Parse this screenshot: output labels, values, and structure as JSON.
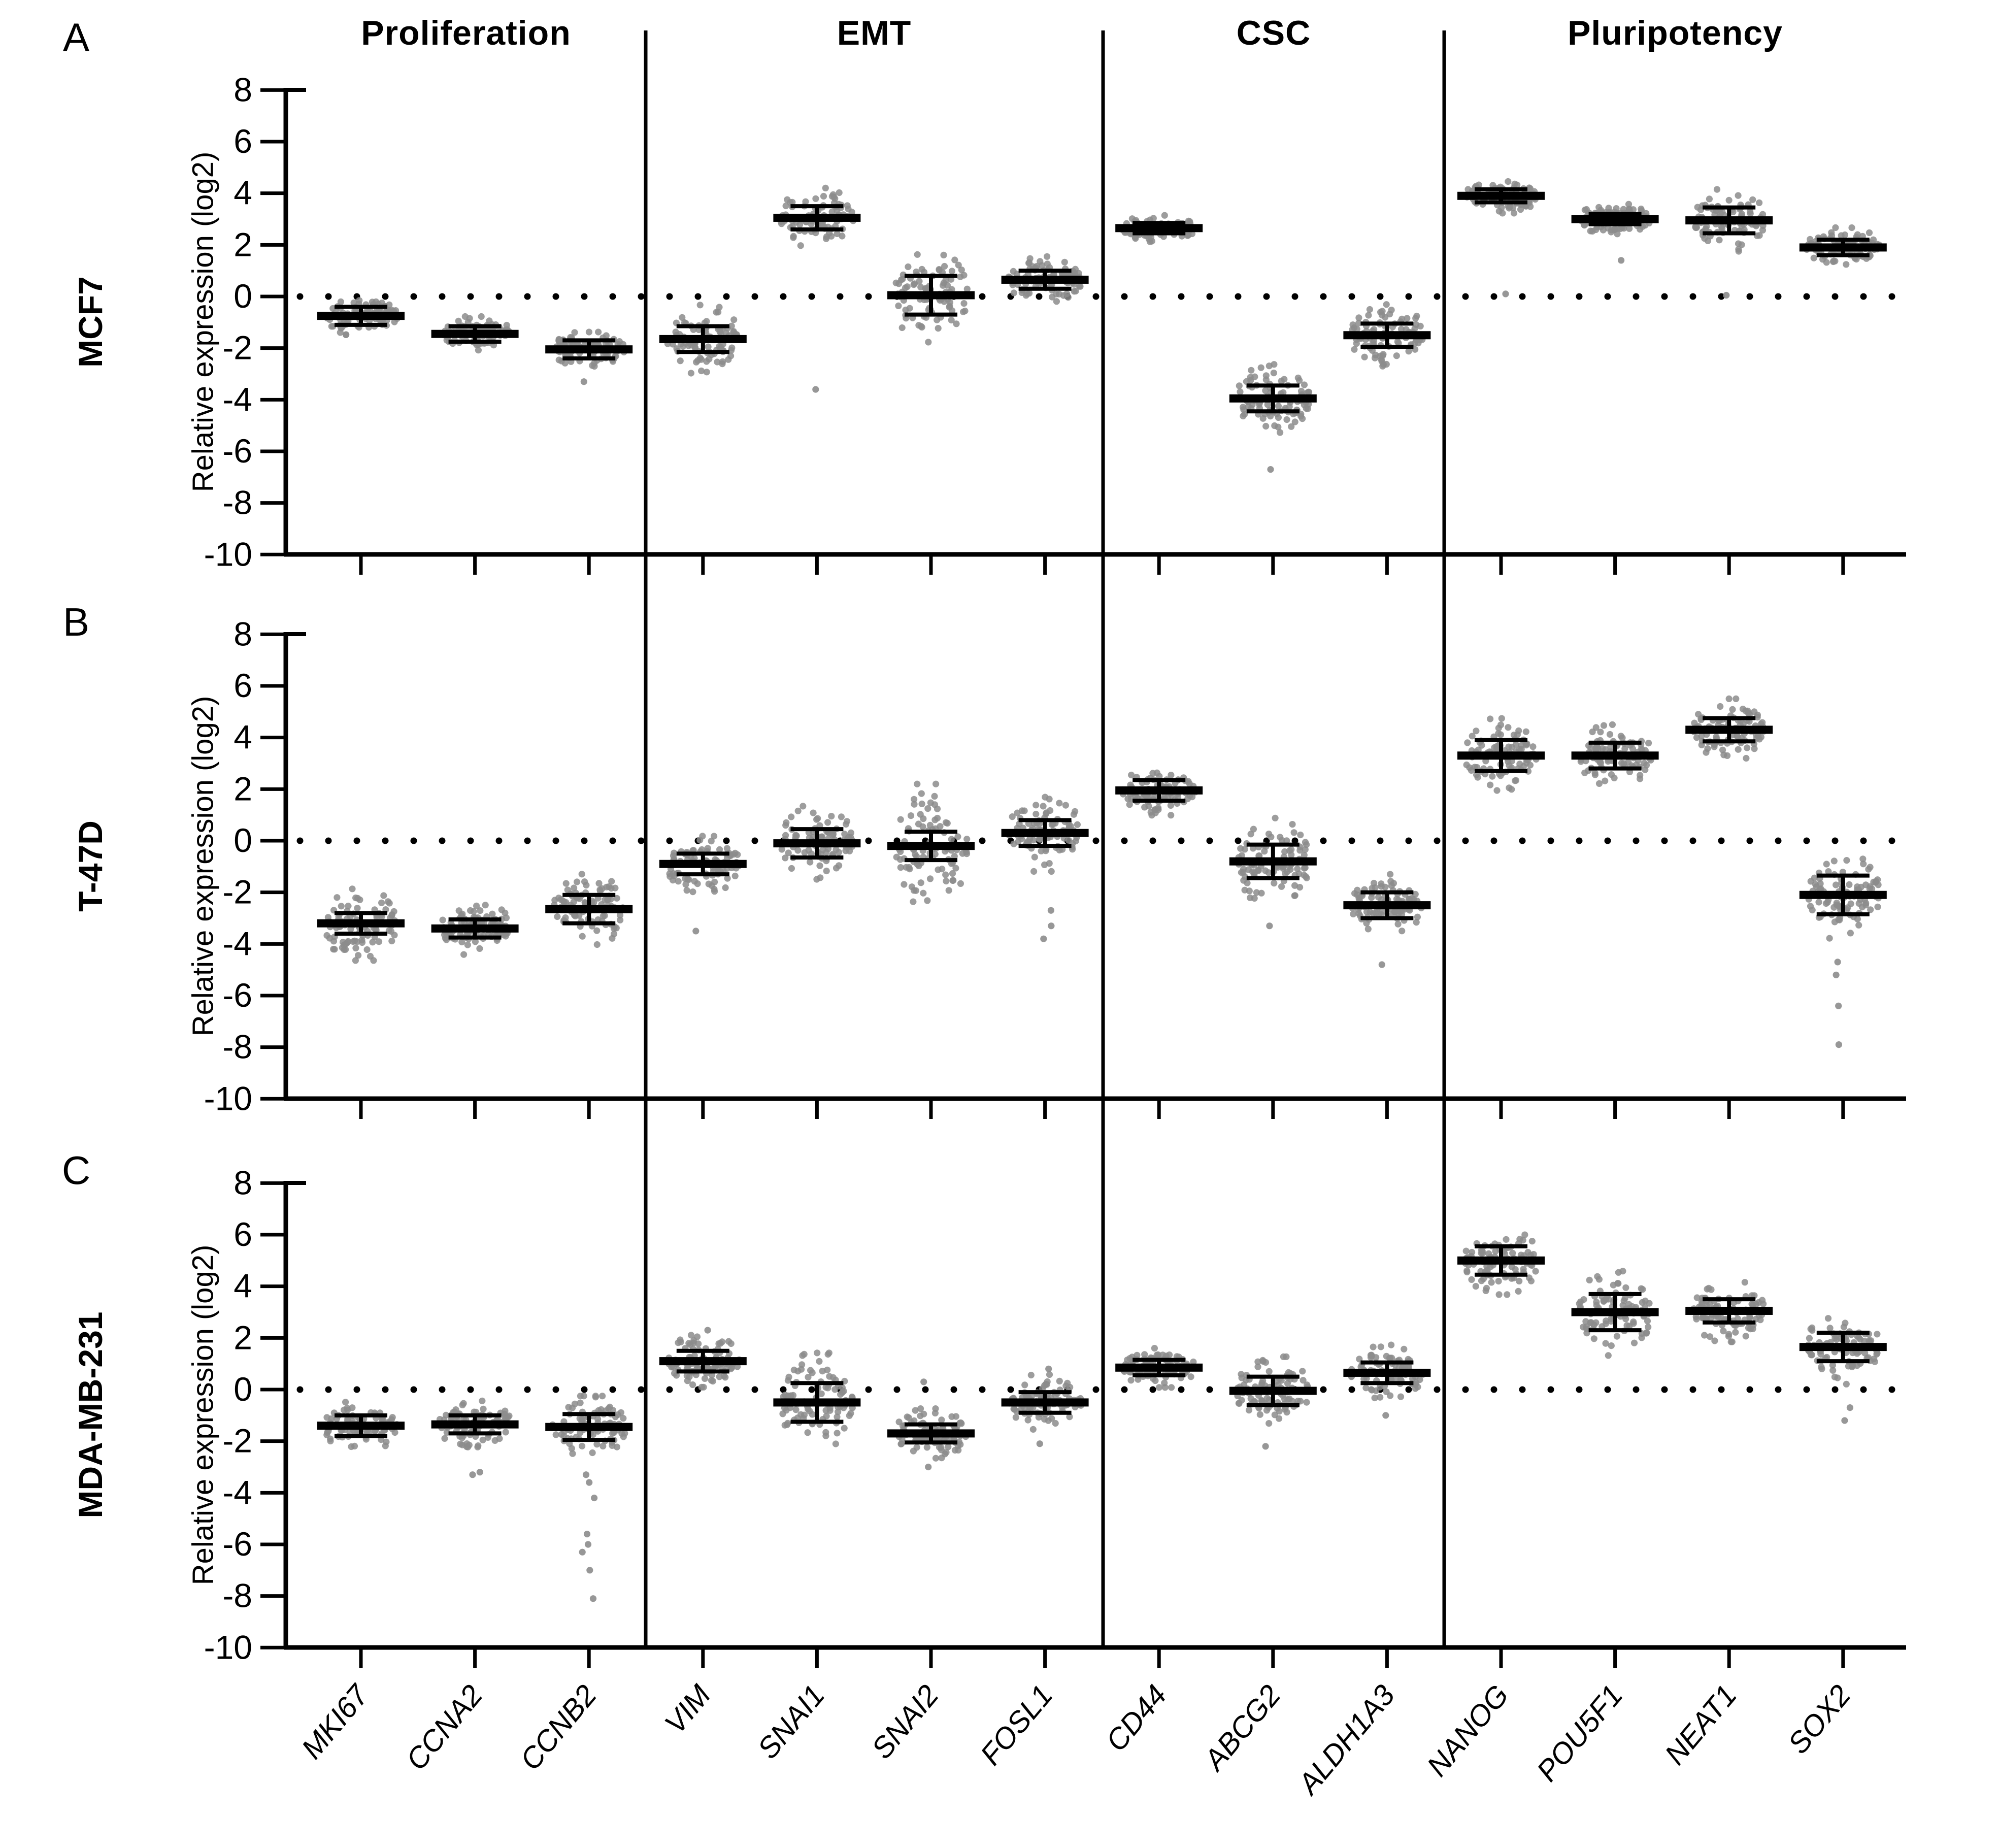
{
  "figure_title": "",
  "chart_data": {
    "type": "scatter",
    "subtype": "beeswarm-dot-plot",
    "ylabel": "Relative expression (log2)",
    "ylim": [
      -10,
      8
    ],
    "yticks": [
      8,
      6,
      4,
      2,
      0,
      -2,
      -4,
      -6,
      -8,
      -10
    ],
    "zero_reference_line": "dotted",
    "legend_position": "none",
    "grid": false,
    "groups": [
      {
        "label": "Proliferation",
        "genes": [
          "MKI67",
          "CCNA2",
          "CCNB2"
        ]
      },
      {
        "label": "EMT",
        "genes": [
          "VIM",
          "SNAI1",
          "SNAI2",
          "FOSL1"
        ]
      },
      {
        "label": "CSC",
        "genes": [
          "CD44",
          "ABCG2",
          "ALDH1A3"
        ]
      },
      {
        "label": "Pluripotency",
        "genes": [
          "NANOG",
          "POU5F1",
          "NEAT1",
          "SOX2"
        ]
      }
    ],
    "genes": [
      "MKI67",
      "CCNA2",
      "CCNB2",
      "VIM",
      "SNAI1",
      "SNAI2",
      "FOSL1",
      "CD44",
      "ABCG2",
      "ALDH1A3",
      "NANOG",
      "POU5F1",
      "NEAT1",
      "SOX2"
    ],
    "panels": [
      {
        "letter": "A",
        "cell_line": "MCF7",
        "stats": [
          {
            "gene": "MKI67",
            "median": -0.75,
            "whisker": 0.35,
            "sd": 0.32,
            "outliers": []
          },
          {
            "gene": "CCNA2",
            "median": -1.45,
            "whisker": 0.3,
            "sd": 0.28,
            "outliers": []
          },
          {
            "gene": "CCNB2",
            "median": -2.05,
            "whisker": 0.35,
            "sd": 0.28,
            "outliers": [
              -3.3
            ]
          },
          {
            "gene": "VIM",
            "median": -1.65,
            "whisker": 0.5,
            "sd": 0.55,
            "outliers": []
          },
          {
            "gene": "SNAI1",
            "median": 3.05,
            "whisker": 0.45,
            "sd": 0.48,
            "outliers": [
              -3.6
            ]
          },
          {
            "gene": "SNAI2",
            "median": 0.05,
            "whisker": 0.75,
            "sd": 0.8,
            "outliers": []
          },
          {
            "gene": "FOSL1",
            "median": 0.65,
            "whisker": 0.35,
            "sd": 0.38,
            "outliers": []
          },
          {
            "gene": "CD44",
            "median": 2.65,
            "whisker": 0.2,
            "sd": 0.22,
            "outliers": []
          },
          {
            "gene": "ABCG2",
            "median": -3.95,
            "whisker": 0.5,
            "sd": 0.55,
            "outliers": [
              -6.7
            ]
          },
          {
            "gene": "ALDH1A3",
            "median": -1.5,
            "whisker": 0.45,
            "sd": 0.5,
            "outliers": []
          },
          {
            "gene": "NANOG",
            "median": 3.9,
            "whisker": 0.25,
            "sd": 0.28,
            "outliers": [
              0.1
            ]
          },
          {
            "gene": "POU5F1",
            "median": 3.0,
            "whisker": 0.2,
            "sd": 0.24,
            "outliers": [
              1.4
            ]
          },
          {
            "gene": "NEAT1",
            "median": 2.95,
            "whisker": 0.5,
            "sd": 0.5,
            "outliers": [
              0.05
            ]
          },
          {
            "gene": "SOX2",
            "median": 1.9,
            "whisker": 0.3,
            "sd": 0.32,
            "outliers": []
          }
        ]
      },
      {
        "letter": "B",
        "cell_line": "T-47D",
        "stats": [
          {
            "gene": "MKI67",
            "median": -3.2,
            "whisker": 0.4,
            "sd": 0.6,
            "outliers": []
          },
          {
            "gene": "CCNA2",
            "median": -3.4,
            "whisker": 0.35,
            "sd": 0.42,
            "outliers": []
          },
          {
            "gene": "CCNB2",
            "median": -2.65,
            "whisker": 0.55,
            "sd": 0.58,
            "outliers": []
          },
          {
            "gene": "VIM",
            "median": -0.9,
            "whisker": 0.4,
            "sd": 0.45,
            "outliers": [
              -3.5
            ]
          },
          {
            "gene": "SNAI1",
            "median": -0.1,
            "whisker": 0.55,
            "sd": 0.6,
            "outliers": []
          },
          {
            "gene": "SNAI2",
            "median": -0.2,
            "whisker": 0.55,
            "sd": 1.0,
            "outliers": []
          },
          {
            "gene": "FOSL1",
            "median": 0.3,
            "whisker": 0.5,
            "sd": 0.62,
            "outliers": [
              -2.7,
              -3.3,
              -3.8
            ]
          },
          {
            "gene": "CD44",
            "median": 1.95,
            "whisker": 0.4,
            "sd": 0.4,
            "outliers": []
          },
          {
            "gene": "ABCG2",
            "median": -0.8,
            "whisker": 0.65,
            "sd": 0.7,
            "outliers": [
              -3.3
            ]
          },
          {
            "gene": "ALDH1A3",
            "median": -2.5,
            "whisker": 0.5,
            "sd": 0.5,
            "outliers": [
              -4.8
            ]
          },
          {
            "gene": "NANOG",
            "median": 3.3,
            "whisker": 0.6,
            "sd": 0.6,
            "outliers": []
          },
          {
            "gene": "POU5F1",
            "median": 3.3,
            "whisker": 0.5,
            "sd": 0.5,
            "outliers": []
          },
          {
            "gene": "NEAT1",
            "median": 4.3,
            "whisker": 0.45,
            "sd": 0.5,
            "outliers": []
          },
          {
            "gene": "SOX2",
            "median": -2.1,
            "whisker": 0.75,
            "sd": 0.7,
            "outliers": [
              -4.7,
              -5.2,
              -6.4,
              -7.9
            ]
          }
        ]
      },
      {
        "letter": "C",
        "cell_line": "MDA-MB-231",
        "stats": [
          {
            "gene": "MKI67",
            "median": -1.4,
            "whisker": 0.4,
            "sd": 0.42,
            "outliers": []
          },
          {
            "gene": "CCNA2",
            "median": -1.35,
            "whisker": 0.35,
            "sd": 0.38,
            "outliers": [
              -3.2,
              -3.3
            ]
          },
          {
            "gene": "CCNB2",
            "median": -1.45,
            "whisker": 0.5,
            "sd": 0.5,
            "outliers": [
              -3.3,
              -3.6,
              -4.2,
              -5.6,
              -6.0,
              -6.3,
              -7.0,
              -8.1
            ]
          },
          {
            "gene": "VIM",
            "median": 1.1,
            "whisker": 0.4,
            "sd": 0.42,
            "outliers": [
              2.3
            ]
          },
          {
            "gene": "SNAI1",
            "median": -0.5,
            "whisker": 0.75,
            "sd": 0.8,
            "outliers": []
          },
          {
            "gene": "SNAI2",
            "median": -1.7,
            "whisker": 0.35,
            "sd": 0.4,
            "outliers": [
              -3.0,
              0.3
            ]
          },
          {
            "gene": "FOSL1",
            "median": -0.5,
            "whisker": 0.4,
            "sd": 0.45,
            "outliers": [
              0.8,
              -2.1
            ]
          },
          {
            "gene": "CD44",
            "median": 0.85,
            "whisker": 0.3,
            "sd": 0.32,
            "outliers": []
          },
          {
            "gene": "ABCG2",
            "median": -0.05,
            "whisker": 0.55,
            "sd": 0.55,
            "outliers": [
              -2.2
            ]
          },
          {
            "gene": "ALDH1A3",
            "median": 0.65,
            "whisker": 0.4,
            "sd": 0.45,
            "outliers": [
              -1.0
            ]
          },
          {
            "gene": "NANOG",
            "median": 5.0,
            "whisker": 0.55,
            "sd": 0.55,
            "outliers": []
          },
          {
            "gene": "POU5F1",
            "median": 3.0,
            "whisker": 0.7,
            "sd": 0.7,
            "outliers": []
          },
          {
            "gene": "NEAT1",
            "median": 3.05,
            "whisker": 0.45,
            "sd": 0.5,
            "outliers": []
          },
          {
            "gene": "SOX2",
            "median": 1.65,
            "whisker": 0.55,
            "sd": 0.6,
            "outliers": [
              -0.7,
              -1.2
            ]
          }
        ]
      }
    ],
    "style": {
      "dot_color": "#8c8c8c",
      "line_color": "#000000",
      "background": "#ffffff"
    }
  }
}
